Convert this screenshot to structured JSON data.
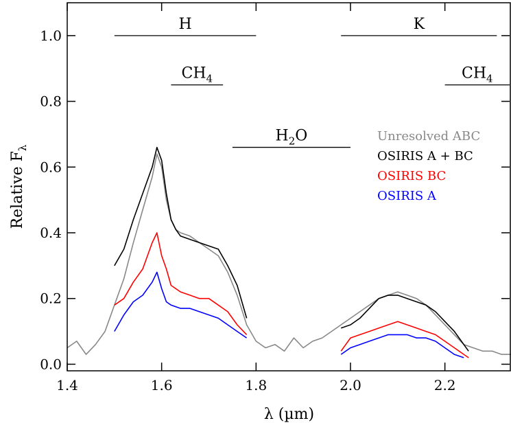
{
  "chart_data": {
    "type": "line",
    "xlabel": "λ (µm)",
    "ylabel": "Relative F",
    "ylabel_sub": "λ",
    "xlim": [
      1.4,
      2.34
    ],
    "ylim": [
      -0.02,
      1.1
    ],
    "xticks": [
      {
        "value": 1.4,
        "label": "1.4"
      },
      {
        "value": 1.6,
        "label": "1.6"
      },
      {
        "value": 1.8,
        "label": "1.8"
      },
      {
        "value": 2.0,
        "label": "2.0"
      },
      {
        "value": 2.2,
        "label": "2.2"
      }
    ],
    "yticks": [
      {
        "value": 0.0,
        "label": "0.0"
      },
      {
        "value": 0.2,
        "label": "0.2"
      },
      {
        "value": 0.4,
        "label": "0.4"
      },
      {
        "value": 0.6,
        "label": "0.6"
      },
      {
        "value": 0.8,
        "label": "0.8"
      },
      {
        "value": 1.0,
        "label": "1.0"
      }
    ],
    "grid": false,
    "legend_position": "right",
    "bands": [
      {
        "label": "H",
        "sub": "",
        "x0": 1.5,
        "x1": 1.8,
        "y": 1.0
      },
      {
        "label": "K",
        "sub": "",
        "x0": 1.98,
        "x1": 2.31,
        "y": 1.0
      },
      {
        "label": "CH",
        "sub": "4",
        "x0": 1.62,
        "x1": 1.73,
        "y": 0.85
      },
      {
        "label": "CH",
        "sub": "4",
        "x0": 2.2,
        "x1": 2.34,
        "y": 0.85
      },
      {
        "label": "H",
        "sub": "2",
        "suffix": "O",
        "x0": 1.75,
        "x1": 2.0,
        "y": 0.66
      }
    ],
    "series": [
      {
        "name": "Unresolved ABC",
        "color": "#888888",
        "points": [
          [
            1.4,
            0.05
          ],
          [
            1.42,
            0.07
          ],
          [
            1.44,
            0.03
          ],
          [
            1.46,
            0.06
          ],
          [
            1.48,
            0.1
          ],
          [
            1.5,
            0.18
          ],
          [
            1.52,
            0.26
          ],
          [
            1.54,
            0.37
          ],
          [
            1.56,
            0.47
          ],
          [
            1.58,
            0.57
          ],
          [
            1.59,
            0.64
          ],
          [
            1.6,
            0.6
          ],
          [
            1.61,
            0.5
          ],
          [
            1.62,
            0.44
          ],
          [
            1.63,
            0.41
          ],
          [
            1.64,
            0.4
          ],
          [
            1.66,
            0.39
          ],
          [
            1.68,
            0.37
          ],
          [
            1.7,
            0.35
          ],
          [
            1.72,
            0.33
          ],
          [
            1.74,
            0.28
          ],
          [
            1.76,
            0.21
          ],
          [
            1.78,
            0.12
          ],
          [
            1.8,
            0.07
          ],
          [
            1.82,
            0.05
          ],
          [
            1.84,
            0.06
          ],
          [
            1.86,
            0.04
          ],
          [
            1.88,
            0.08
          ],
          [
            1.9,
            0.05
          ],
          [
            1.92,
            0.07
          ],
          [
            1.94,
            0.08
          ],
          [
            1.96,
            0.1
          ],
          [
            1.98,
            0.12
          ],
          [
            2.0,
            0.14
          ],
          [
            2.02,
            0.16
          ],
          [
            2.04,
            0.18
          ],
          [
            2.06,
            0.2
          ],
          [
            2.08,
            0.21
          ],
          [
            2.1,
            0.22
          ],
          [
            2.12,
            0.21
          ],
          [
            2.14,
            0.2
          ],
          [
            2.16,
            0.18
          ],
          [
            2.18,
            0.15
          ],
          [
            2.2,
            0.12
          ],
          [
            2.22,
            0.09
          ],
          [
            2.24,
            0.06
          ],
          [
            2.26,
            0.05
          ],
          [
            2.28,
            0.04
          ],
          [
            2.3,
            0.04
          ],
          [
            2.32,
            0.03
          ],
          [
            2.34,
            0.03
          ]
        ]
      },
      {
        "name": "OSIRIS A + BC",
        "color": "#000000",
        "points": [
          [
            1.5,
            0.3
          ],
          [
            1.52,
            0.35
          ],
          [
            1.54,
            0.44
          ],
          [
            1.56,
            0.52
          ],
          [
            1.58,
            0.6
          ],
          [
            1.59,
            0.66
          ],
          [
            1.6,
            0.62
          ],
          [
            1.61,
            0.52
          ],
          [
            1.62,
            0.44
          ],
          [
            1.63,
            0.41
          ],
          [
            1.64,
            0.39
          ],
          [
            1.66,
            0.38
          ],
          [
            1.68,
            0.37
          ],
          [
            1.7,
            0.36
          ],
          [
            1.72,
            0.35
          ],
          [
            1.74,
            0.3
          ],
          [
            1.76,
            0.24
          ],
          [
            1.78,
            0.14
          ],
          [
            1.98,
            0.11
          ],
          [
            2.0,
            0.12
          ],
          [
            2.02,
            0.14
          ],
          [
            2.04,
            0.17
          ],
          [
            2.06,
            0.2
          ],
          [
            2.08,
            0.21
          ],
          [
            2.1,
            0.21
          ],
          [
            2.12,
            0.2
          ],
          [
            2.14,
            0.19
          ],
          [
            2.16,
            0.18
          ],
          [
            2.18,
            0.16
          ],
          [
            2.2,
            0.13
          ],
          [
            2.22,
            0.1
          ],
          [
            2.24,
            0.06
          ],
          [
            2.25,
            0.04
          ]
        ]
      },
      {
        "name": "OSIRIS BC",
        "color": "#ff0000",
        "points": [
          [
            1.5,
            0.18
          ],
          [
            1.52,
            0.2
          ],
          [
            1.54,
            0.25
          ],
          [
            1.56,
            0.29
          ],
          [
            1.58,
            0.37
          ],
          [
            1.59,
            0.4
          ],
          [
            1.6,
            0.33
          ],
          [
            1.61,
            0.29
          ],
          [
            1.62,
            0.24
          ],
          [
            1.64,
            0.22
          ],
          [
            1.66,
            0.21
          ],
          [
            1.68,
            0.2
          ],
          [
            1.7,
            0.2
          ],
          [
            1.72,
            0.18
          ],
          [
            1.74,
            0.16
          ],
          [
            1.76,
            0.12
          ],
          [
            1.78,
            0.09
          ],
          [
            1.98,
            0.04
          ],
          [
            2.0,
            0.08
          ],
          [
            2.02,
            0.09
          ],
          [
            2.04,
            0.1
          ],
          [
            2.06,
            0.11
          ],
          [
            2.08,
            0.12
          ],
          [
            2.1,
            0.13
          ],
          [
            2.12,
            0.12
          ],
          [
            2.14,
            0.11
          ],
          [
            2.16,
            0.1
          ],
          [
            2.18,
            0.09
          ],
          [
            2.2,
            0.07
          ],
          [
            2.22,
            0.05
          ],
          [
            2.24,
            0.03
          ],
          [
            2.25,
            0.02
          ]
        ]
      },
      {
        "name": "OSIRIS A",
        "color": "#0000ff",
        "points": [
          [
            1.5,
            0.1
          ],
          [
            1.52,
            0.15
          ],
          [
            1.54,
            0.19
          ],
          [
            1.56,
            0.21
          ],
          [
            1.58,
            0.25
          ],
          [
            1.59,
            0.28
          ],
          [
            1.6,
            0.23
          ],
          [
            1.61,
            0.19
          ],
          [
            1.62,
            0.18
          ],
          [
            1.64,
            0.17
          ],
          [
            1.66,
            0.17
          ],
          [
            1.68,
            0.16
          ],
          [
            1.7,
            0.15
          ],
          [
            1.72,
            0.14
          ],
          [
            1.74,
            0.12
          ],
          [
            1.76,
            0.1
          ],
          [
            1.78,
            0.08
          ],
          [
            1.98,
            0.03
          ],
          [
            2.0,
            0.05
          ],
          [
            2.02,
            0.06
          ],
          [
            2.04,
            0.07
          ],
          [
            2.06,
            0.08
          ],
          [
            2.08,
            0.09
          ],
          [
            2.1,
            0.09
          ],
          [
            2.12,
            0.09
          ],
          [
            2.14,
            0.08
          ],
          [
            2.16,
            0.08
          ],
          [
            2.18,
            0.07
          ],
          [
            2.2,
            0.05
          ],
          [
            2.22,
            0.03
          ],
          [
            2.24,
            0.02
          ]
        ]
      }
    ]
  }
}
